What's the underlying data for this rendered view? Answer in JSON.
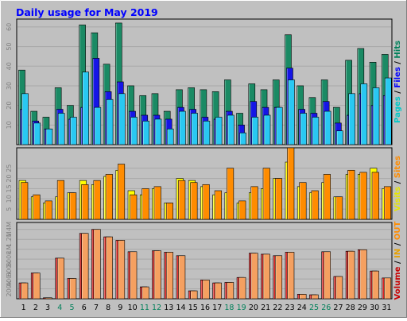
{
  "chart_data": [
    {
      "type": "bar",
      "title": "Daily usage for May 2019",
      "categories": [
        "1",
        "2",
        "3",
        "4",
        "5",
        "6",
        "7",
        "8",
        "9",
        "10",
        "11",
        "12",
        "13",
        "14",
        "15",
        "16",
        "17",
        "18",
        "19",
        "20",
        "21",
        "22",
        "23",
        "24",
        "25",
        "26",
        "27",
        "28",
        "29",
        "30",
        "31"
      ],
      "weekend_days": [
        "4",
        "5",
        "11",
        "12",
        "18",
        "19",
        "25",
        "26"
      ],
      "ylim": [
        0,
        64
      ],
      "yticks": [
        "10",
        "20",
        "30",
        "40",
        "50",
        "60"
      ],
      "right_labels": [
        {
          "text": "Pages",
          "color": "#00c8c8"
        },
        {
          "text": " / ",
          "color": "#000000"
        },
        {
          "text": "Files",
          "color": "#0000ff"
        },
        {
          "text": " / ",
          "color": "#000000"
        },
        {
          "text": "Hits",
          "color": "#00805a"
        }
      ],
      "series": [
        {
          "name": "Hits",
          "color": "#1a8a64",
          "values": [
            38,
            17,
            14,
            29,
            20,
            61,
            57,
            41,
            62,
            30,
            25,
            26,
            17,
            28,
            29,
            28,
            27,
            33,
            16,
            31,
            28,
            33,
            56,
            30,
            24,
            33,
            19,
            43,
            49,
            42,
            46
          ]
        },
        {
          "name": "Files",
          "color": "#1515e6",
          "values": [
            18,
            12,
            8,
            18,
            13,
            19,
            44,
            27,
            32,
            17,
            15,
            15,
            13,
            19,
            18,
            14,
            13,
            17,
            10,
            22,
            19,
            19,
            39,
            18,
            16,
            22,
            11,
            15,
            26,
            20,
            25
          ]
        },
        {
          "name": "Pages",
          "color": "#29c8f2",
          "values": [
            26,
            11,
            8,
            16,
            14,
            37,
            19,
            23,
            26,
            14,
            12,
            13,
            8,
            17,
            16,
            12,
            14,
            15,
            6,
            14,
            15,
            19,
            33,
            16,
            14,
            17,
            7,
            26,
            31,
            29,
            34
          ]
        }
      ]
    },
    {
      "type": "bar",
      "categories": [
        "1",
        "2",
        "3",
        "4",
        "5",
        "6",
        "7",
        "8",
        "9",
        "10",
        "11",
        "12",
        "13",
        "14",
        "15",
        "16",
        "17",
        "18",
        "19",
        "20",
        "21",
        "22",
        "23",
        "24",
        "25",
        "26",
        "27",
        "28",
        "29",
        "30",
        "31"
      ],
      "ylim": [
        0,
        35
      ],
      "yticks": [
        "5",
        "10",
        "15",
        "20",
        "25"
      ],
      "right_labels": [
        {
          "text": "Visits",
          "color": "#e6e600"
        },
        {
          "text": " / ",
          "color": "#000000"
        },
        {
          "text": "Sites",
          "color": "#ff8c00"
        }
      ],
      "series": [
        {
          "name": "Visits",
          "color": "#ffff00",
          "values": [
            19,
            11,
            8,
            11,
            13,
            19,
            17,
            21,
            24,
            14,
            12,
            15,
            8,
            20,
            19,
            16,
            12,
            13,
            8,
            13,
            15,
            20,
            28,
            16,
            13,
            18,
            11,
            22,
            22,
            25,
            15
          ]
        },
        {
          "name": "Sites",
          "color": "#ff8c00",
          "values": [
            18,
            12,
            9,
            19,
            13,
            17,
            19,
            22,
            27,
            12,
            15,
            16,
            8,
            19,
            18,
            17,
            14,
            25,
            9,
            16,
            25,
            20,
            35,
            18,
            14,
            22,
            11,
            24,
            23,
            23,
            16
          ]
        }
      ]
    },
    {
      "type": "bar",
      "categories": [
        "1",
        "2",
        "3",
        "4",
        "5",
        "6",
        "7",
        "8",
        "9",
        "10",
        "11",
        "12",
        "13",
        "14",
        "15",
        "16",
        "17",
        "18",
        "19",
        "20",
        "21",
        "22",
        "23",
        "24",
        "25",
        "26",
        "27",
        "28",
        "29",
        "30",
        "31"
      ],
      "ylim": [
        0,
        1540000
      ],
      "yticks": [
        "200k",
        "400k",
        "600k",
        "800k",
        "1M",
        "1.2M",
        "1.4M"
      ],
      "right_labels": [
        {
          "text": "Volume",
          "color": "#c80000"
        },
        {
          "text": " / ",
          "color": "#000000"
        },
        {
          "text": "IN",
          "color": "#e6a000"
        },
        {
          "text": " / ",
          "color": "#000000"
        },
        {
          "text": "OUT",
          "color": "#ff8c00"
        }
      ],
      "series": [
        {
          "name": "Volume",
          "color": "#e02020",
          "values": [
            320000,
            520000,
            20000,
            820000,
            410000,
            1320000,
            1400000,
            1250000,
            1180000,
            950000,
            240000,
            970000,
            940000,
            870000,
            160000,
            380000,
            320000,
            330000,
            430000,
            920000,
            900000,
            870000,
            940000,
            90000,
            80000,
            950000,
            450000,
            960000,
            990000,
            560000,
            420000
          ]
        },
        {
          "name": "OUT",
          "color": "#f5a060",
          "values": [
            320000,
            520000,
            20000,
            820000,
            410000,
            1320000,
            1400000,
            1250000,
            1180000,
            950000,
            240000,
            970000,
            940000,
            870000,
            160000,
            380000,
            320000,
            330000,
            430000,
            920000,
            900000,
            870000,
            940000,
            90000,
            80000,
            950000,
            450000,
            960000,
            990000,
            560000,
            420000
          ]
        }
      ]
    }
  ]
}
